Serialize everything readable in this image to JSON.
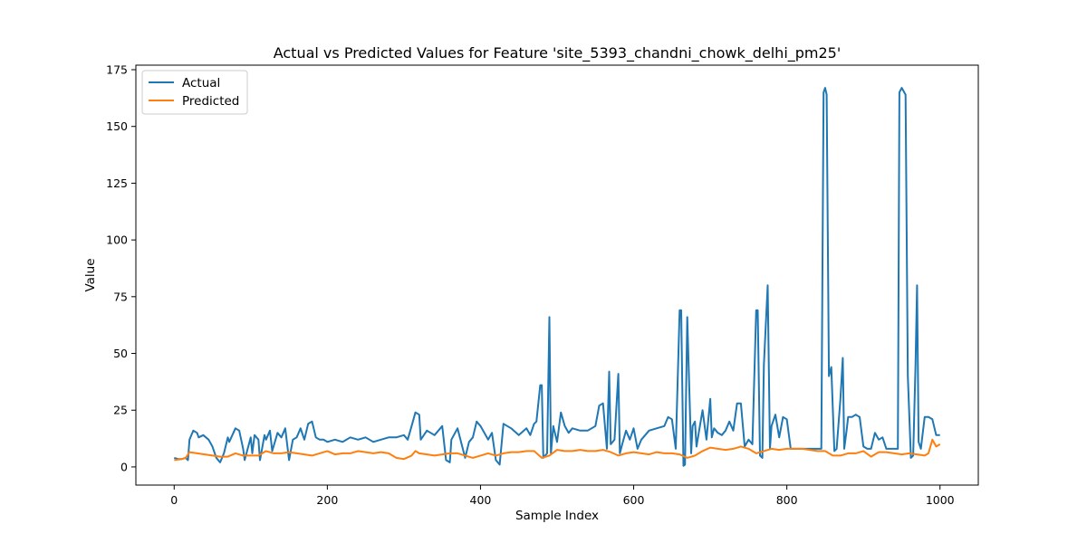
{
  "chart_data": {
    "type": "line",
    "title": "Actual vs Predicted Values for Feature 'site_5393_chandni_chowk_delhi_pm25'",
    "xlabel": "Sample Index",
    "ylabel": "Value",
    "xlim": [
      -50,
      1050
    ],
    "ylim": [
      -8,
      177
    ],
    "xticks": [
      0,
      200,
      400,
      600,
      800,
      1000
    ],
    "yticks": [
      0,
      25,
      50,
      75,
      100,
      125,
      150,
      175
    ],
    "grid": false,
    "legend_position": "upper-left",
    "series": [
      {
        "name": "Actual",
        "color": "#1f77b4",
        "x": [
          0,
          5,
          10,
          15,
          18,
          20,
          25,
          30,
          32,
          38,
          45,
          50,
          55,
          60,
          65,
          70,
          72,
          80,
          85,
          90,
          92,
          100,
          102,
          105,
          110,
          112,
          118,
          120,
          125,
          128,
          135,
          140,
          145,
          150,
          155,
          160,
          165,
          170,
          175,
          180,
          185,
          190,
          195,
          200,
          210,
          220,
          230,
          240,
          250,
          260,
          270,
          280,
          290,
          300,
          305,
          310,
          315,
          320,
          322,
          330,
          340,
          350,
          355,
          360,
          362,
          370,
          380,
          385,
          390,
          395,
          400,
          410,
          415,
          420,
          425,
          430,
          440,
          450,
          460,
          465,
          470,
          473,
          478,
          480,
          482,
          487,
          490,
          492,
          495,
          500,
          505,
          510,
          515,
          520,
          530,
          540,
          550,
          555,
          560,
          565,
          568,
          570,
          575,
          580,
          582,
          585,
          590,
          595,
          600,
          605,
          610,
          620,
          630,
          640,
          645,
          650,
          655,
          660,
          662,
          665,
          667,
          670,
          675,
          677,
          680,
          682,
          685,
          690,
          695,
          700,
          702,
          705,
          710,
          715,
          720,
          725,
          730,
          735,
          740,
          745,
          750,
          755,
          760,
          762,
          765,
          768,
          770,
          775,
          778,
          780,
          785,
          790,
          795,
          800,
          805,
          810,
          815,
          820,
          825,
          830,
          835,
          840,
          845,
          848,
          850,
          852,
          855,
          858,
          862,
          865,
          870,
          873,
          875,
          878,
          880,
          885,
          890,
          895,
          900,
          905,
          910,
          915,
          920,
          925,
          930,
          935,
          940,
          945,
          947,
          950,
          955,
          958,
          962,
          965,
          968,
          970,
          972,
          975,
          980,
          985,
          990,
          995,
          1000
        ],
        "values": [
          4,
          3.5,
          3.5,
          4,
          3,
          12,
          16,
          15,
          13,
          14,
          12,
          9,
          4,
          2,
          6,
          13,
          11,
          17,
          16,
          8,
          3,
          13,
          6,
          14,
          12,
          3,
          14,
          12,
          16,
          7,
          15,
          13,
          17,
          3,
          12,
          13,
          17,
          12,
          19,
          20,
          13,
          12,
          12,
          11,
          12,
          11,
          13,
          12,
          13,
          11,
          12,
          13,
          13,
          14,
          12,
          18,
          24,
          23,
          12,
          16,
          14,
          18,
          3,
          2,
          12,
          17,
          4,
          11,
          13,
          20,
          18,
          12,
          15,
          3,
          1,
          19,
          17,
          14,
          17,
          14,
          19,
          20,
          36,
          36,
          4,
          6,
          66,
          6,
          18,
          11,
          24,
          18,
          15,
          17,
          16,
          16,
          18,
          27,
          28,
          8,
          42,
          10,
          12,
          41,
          6,
          10,
          16,
          12,
          17,
          8,
          12,
          16,
          17,
          18,
          22,
          21,
          8,
          69,
          69,
          0.5,
          1,
          66,
          6,
          18,
          20,
          9,
          15,
          25,
          12,
          30,
          13,
          17,
          15,
          14,
          16,
          20,
          16,
          28,
          28,
          9,
          12,
          10,
          69,
          69,
          5,
          4,
          45,
          80,
          8,
          18,
          23,
          13,
          22,
          21,
          8,
          8,
          8,
          8,
          8,
          8,
          8,
          8,
          8,
          165,
          167,
          164,
          40,
          44,
          7,
          8,
          30,
          48,
          8,
          16,
          22,
          22,
          23,
          22,
          9,
          8,
          8,
          15,
          12,
          13,
          8,
          8,
          8,
          8,
          165,
          167,
          164,
          40,
          4,
          5,
          45,
          80,
          11,
          8,
          22,
          22,
          21,
          14,
          14
        ]
      },
      {
        "name": "Predicted",
        "color": "#ff7f0e",
        "x": [
          0,
          10,
          15,
          20,
          30,
          40,
          50,
          60,
          70,
          80,
          90,
          100,
          110,
          120,
          130,
          140,
          150,
          160,
          170,
          180,
          190,
          200,
          210,
          220,
          230,
          240,
          250,
          260,
          270,
          280,
          290,
          300,
          310,
          315,
          320,
          330,
          340,
          350,
          360,
          370,
          380,
          390,
          400,
          410,
          420,
          430,
          440,
          450,
          460,
          470,
          480,
          490,
          500,
          510,
          520,
          530,
          540,
          550,
          560,
          570,
          580,
          590,
          600,
          610,
          620,
          630,
          640,
          650,
          660,
          670,
          680,
          690,
          700,
          710,
          720,
          730,
          740,
          750,
          760,
          770,
          780,
          790,
          800,
          810,
          820,
          830,
          840,
          850,
          860,
          870,
          880,
          890,
          900,
          910,
          920,
          930,
          940,
          950,
          960,
          970,
          980,
          985,
          990,
          995,
          1000
        ],
        "values": [
          3,
          3.5,
          4,
          6.5,
          6,
          5.5,
          5,
          4.5,
          4.5,
          6,
          5,
          5,
          5,
          7,
          6,
          6,
          6.5,
          6,
          5.5,
          5,
          6,
          7,
          5.5,
          6,
          6,
          7,
          6.5,
          6,
          6.5,
          6,
          4,
          3.5,
          5,
          7,
          6,
          5.5,
          5,
          5.5,
          6,
          6,
          5,
          4,
          5,
          6,
          5,
          6,
          6.5,
          6.5,
          7,
          7,
          4,
          5,
          7.5,
          7,
          7,
          7.5,
          7,
          7,
          7.5,
          6.5,
          5,
          6,
          6.5,
          6,
          5.5,
          6.5,
          6,
          6,
          5.5,
          4,
          5,
          7,
          8.5,
          8,
          7.5,
          8,
          9,
          8,
          6,
          7,
          8,
          7.5,
          8,
          8,
          8,
          7.5,
          7,
          7,
          5,
          5,
          6,
          6,
          7,
          4.5,
          6.5,
          6.5,
          6,
          5.5,
          6,
          5.5,
          5,
          6,
          12,
          9,
          10
        ]
      }
    ]
  }
}
